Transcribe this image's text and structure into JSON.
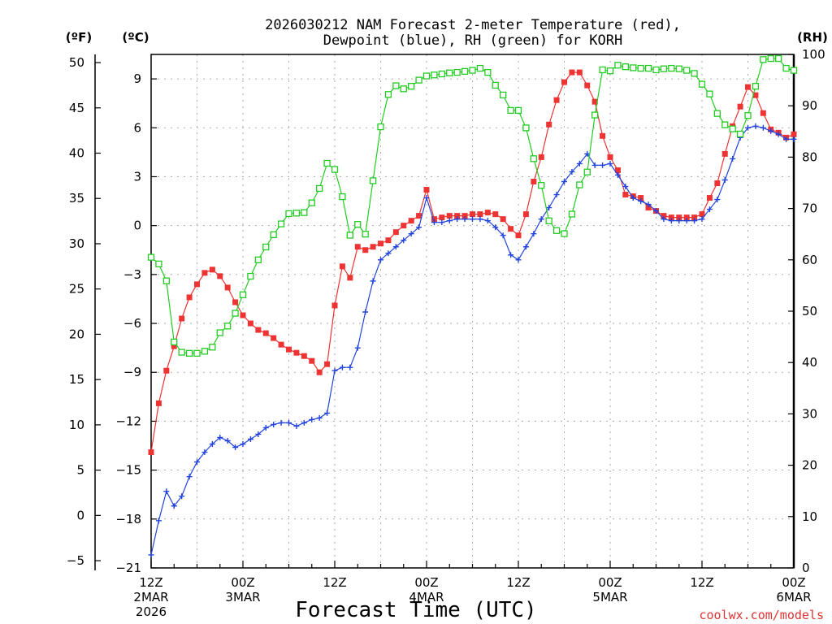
{
  "chart_data": {
    "type": "line",
    "title_line1": "2026030212 NAM Forecast 2-meter Temperature (red),",
    "title_line2": "Dewpoint (blue), RH (green) for KORH",
    "xlabel": "Forecast Time (UTC)",
    "credit": "coolwx.com/models",
    "units": {
      "fahrenheit": "(ºF)",
      "celsius": "(ºC)",
      "rh": "(RH)"
    },
    "colors": {
      "temperature": "#ee3333",
      "dewpoint": "#2244dd",
      "rh": "#22cc22",
      "grid": "#aaaaaa",
      "credit": "#dd3333"
    },
    "x_range_hours": [
      0,
      84
    ],
    "y_celsius_range": [
      -21,
      10.5
    ],
    "y_rh_range": [
      0,
      100
    ],
    "x_ticks": [
      {
        "hour": 0,
        "lines": [
          "12Z",
          "2MAR",
          "2026"
        ]
      },
      {
        "hour": 12,
        "lines": [
          "00Z",
          "3MAR"
        ]
      },
      {
        "hour": 24,
        "lines": [
          "12Z"
        ]
      },
      {
        "hour": 36,
        "lines": [
          "00Z",
          "4MAR"
        ]
      },
      {
        "hour": 48,
        "lines": [
          "12Z"
        ]
      },
      {
        "hour": 60,
        "lines": [
          "00Z",
          "5MAR"
        ]
      },
      {
        "hour": 72,
        "lines": [
          "12Z"
        ]
      },
      {
        "hour": 84,
        "lines": [
          "00Z",
          "6MAR"
        ]
      }
    ],
    "celsius_ticks": [
      "-21",
      "-18",
      "-15",
      "-12",
      "-9",
      "-6",
      "-3",
      "0",
      "3",
      "6",
      "9"
    ],
    "fahrenheit_ticks": [
      "-5",
      "0",
      "5",
      "10",
      "15",
      "20",
      "25",
      "30",
      "35",
      "40",
      "45",
      "50"
    ],
    "rh_ticks": [
      "0",
      "10",
      "20",
      "30",
      "40",
      "50",
      "60",
      "70",
      "80",
      "90",
      "100"
    ],
    "series": [
      {
        "name": "Temperature",
        "unit": "C",
        "marker": "filled-square",
        "values": [
          -13.9,
          -10.9,
          -8.9,
          -7.4,
          -5.7,
          -4.4,
          -3.6,
          -2.9,
          -2.7,
          -3.1,
          -3.8,
          -4.7,
          -5.5,
          -6.0,
          -6.4,
          -6.6,
          -6.9,
          -7.3,
          -7.6,
          -7.8,
          -8.0,
          -8.3,
          -9.0,
          -8.5,
          -4.9,
          -2.5,
          -3.2,
          -1.3,
          -1.5,
          -1.3,
          -1.1,
          -0.9,
          -0.4,
          0.0,
          0.3,
          0.6,
          2.2,
          0.4,
          0.5,
          0.6,
          0.6,
          0.6,
          0.7,
          0.7,
          0.8,
          0.7,
          0.4,
          -0.2,
          -0.6,
          0.7,
          2.7,
          4.2,
          6.2,
          7.7,
          8.8,
          9.4,
          9.4,
          8.6,
          7.6,
          5.5,
          4.2,
          3.4,
          1.9,
          1.8,
          1.7,
          1.1,
          0.9,
          0.6,
          0.5,
          0.5,
          0.5,
          0.5,
          0.7,
          1.7,
          2.6,
          4.4,
          6.1,
          7.3,
          8.5,
          8.0,
          6.9,
          5.9,
          5.7,
          5.4,
          5.6
        ]
      },
      {
        "name": "Dewpoint",
        "unit": "C",
        "marker": "plus",
        "values": [
          -20.2,
          -18.1,
          -16.3,
          -17.2,
          -16.6,
          -15.4,
          -14.5,
          -13.9,
          -13.4,
          -13.0,
          -13.2,
          -13.6,
          -13.4,
          -13.1,
          -12.8,
          -12.4,
          -12.2,
          -12.1,
          -12.1,
          -12.3,
          -12.1,
          -11.9,
          -11.8,
          -11.5,
          -8.9,
          -8.7,
          -8.7,
          -7.5,
          -5.3,
          -3.4,
          -2.1,
          -1.7,
          -1.3,
          -0.9,
          -0.5,
          -0.1,
          1.7,
          0.2,
          0.2,
          0.3,
          0.4,
          0.4,
          0.4,
          0.4,
          0.3,
          -0.1,
          -0.6,
          -1.8,
          -2.1,
          -1.3,
          -0.5,
          0.4,
          1.1,
          1.9,
          2.7,
          3.3,
          3.8,
          4.4,
          3.7,
          3.7,
          3.8,
          3.1,
          2.4,
          1.7,
          1.5,
          1.3,
          0.9,
          0.4,
          0.3,
          0.3,
          0.3,
          0.3,
          0.4,
          1.0,
          1.6,
          2.8,
          4.1,
          5.4,
          6.0,
          6.1,
          6.0,
          5.8,
          5.6,
          5.3,
          5.3
        ]
      },
      {
        "name": "RH",
        "unit": "%",
        "marker": "open-square",
        "values": [
          60.5,
          59.2,
          55.9,
          44.0,
          42.0,
          41.8,
          41.8,
          42.2,
          43.0,
          45.8,
          47.1,
          49.6,
          53.2,
          56.8,
          60.0,
          62.5,
          64.9,
          67.0,
          69.0,
          69.1,
          69.2,
          71.1,
          73.9,
          78.8,
          77.6,
          72.3,
          64.8,
          66.9,
          65.0,
          75.4,
          85.9,
          92.2,
          93.9,
          93.3,
          93.8,
          95.0,
          95.8,
          96.0,
          96.2,
          96.4,
          96.5,
          96.7,
          96.9,
          97.3,
          96.5,
          94.0,
          92.1,
          89.1,
          89.1,
          85.7,
          79.7,
          74.5,
          67.6,
          65.7,
          65.1,
          68.9,
          74.6,
          77.1,
          88.2,
          97.0,
          96.8,
          97.9,
          97.6,
          97.4,
          97.3,
          97.3,
          97.0,
          97.2,
          97.3,
          97.2,
          96.9,
          96.3,
          94.2,
          92.3,
          88.5,
          86.3,
          85.5,
          84.5,
          88.1,
          93.8,
          99.0,
          99.2,
          99.2,
          97.3,
          96.9
        ]
      }
    ]
  }
}
